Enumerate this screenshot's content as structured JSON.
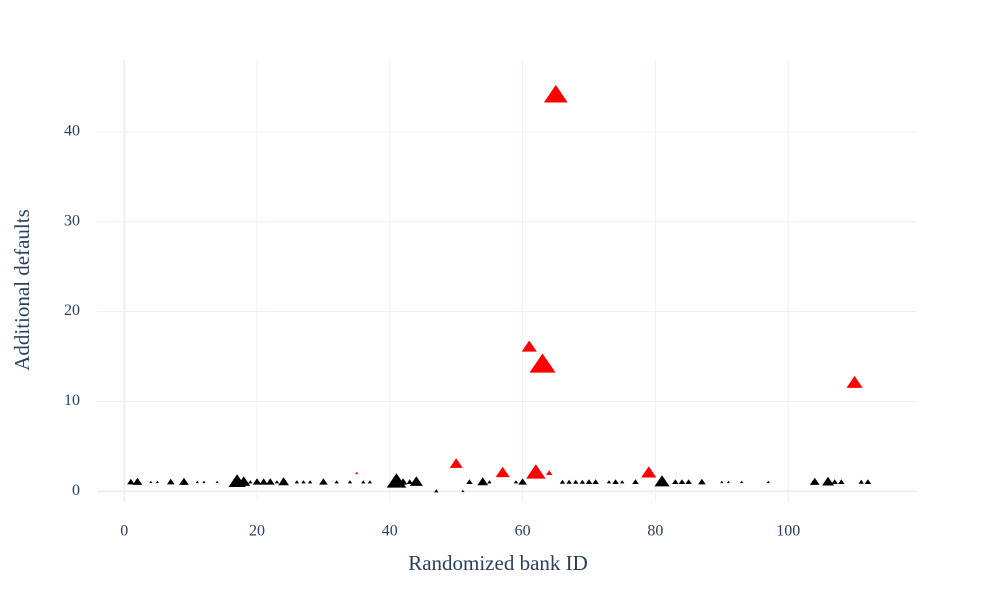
{
  "chart_data": {
    "type": "scatter",
    "x_label": "Randomized bank ID",
    "y_label": "Additional defaults",
    "xlim": [
      -4.1,
      119.4
    ],
    "ylim": [
      -1.2,
      48
    ],
    "xticks": [
      0,
      20,
      40,
      60,
      80,
      100
    ],
    "yticks": [
      0,
      10,
      20,
      30,
      40
    ],
    "grid": true,
    "marker": "triangle-up",
    "series": [
      {
        "color": "#ff0000",
        "x": [
          65,
          61,
          63,
          110,
          50,
          57,
          62,
          64,
          79,
          35
        ],
        "values": [
          44,
          16,
          14,
          12,
          3,
          2,
          2,
          2,
          2,
          2
        ],
        "sizes": [
          22,
          14,
          24,
          15,
          12,
          13,
          18,
          6,
          14,
          3
        ]
      },
      {
        "color": "#000000",
        "x": [
          1,
          2,
          4,
          5,
          7,
          9,
          11,
          12,
          14,
          17,
          18,
          19,
          20,
          21,
          22,
          23,
          24,
          26,
          27,
          28,
          30,
          32,
          34,
          36,
          37,
          41,
          42,
          43,
          44,
          47,
          51,
          52,
          54,
          55,
          59,
          60,
          66,
          67,
          68,
          69,
          70,
          71,
          73,
          74,
          75,
          77,
          81,
          83,
          84,
          85,
          87,
          90,
          91,
          93,
          97,
          104,
          106,
          107,
          108,
          111,
          112
        ],
        "values": [
          1,
          1,
          1,
          1,
          1,
          1,
          1,
          1,
          1,
          1,
          1,
          1,
          1,
          1,
          1,
          1,
          1,
          1,
          1,
          1,
          1,
          1,
          1,
          1,
          1,
          1,
          1,
          1,
          1,
          0,
          0,
          1,
          1,
          1,
          1,
          1,
          1,
          1,
          1,
          1,
          1,
          1,
          1,
          1,
          1,
          1,
          1,
          1,
          1,
          1,
          1,
          1,
          1,
          1,
          1,
          1,
          1,
          1,
          1,
          1,
          1
        ],
        "sizes": [
          7,
          9,
          3,
          3,
          7,
          9,
          3,
          3,
          3,
          16,
          12,
          4,
          8,
          8,
          8,
          4,
          10,
          4,
          4,
          4,
          8,
          4,
          4,
          4,
          4,
          18,
          8,
          6,
          12,
          4,
          3,
          6,
          10,
          4,
          4,
          8,
          5,
          5,
          5,
          5,
          6,
          6,
          4,
          6,
          4,
          6,
          14,
          6,
          6,
          6,
          7,
          3,
          3,
          3,
          3,
          9,
          11,
          6,
          6,
          5,
          6
        ]
      }
    ]
  }
}
